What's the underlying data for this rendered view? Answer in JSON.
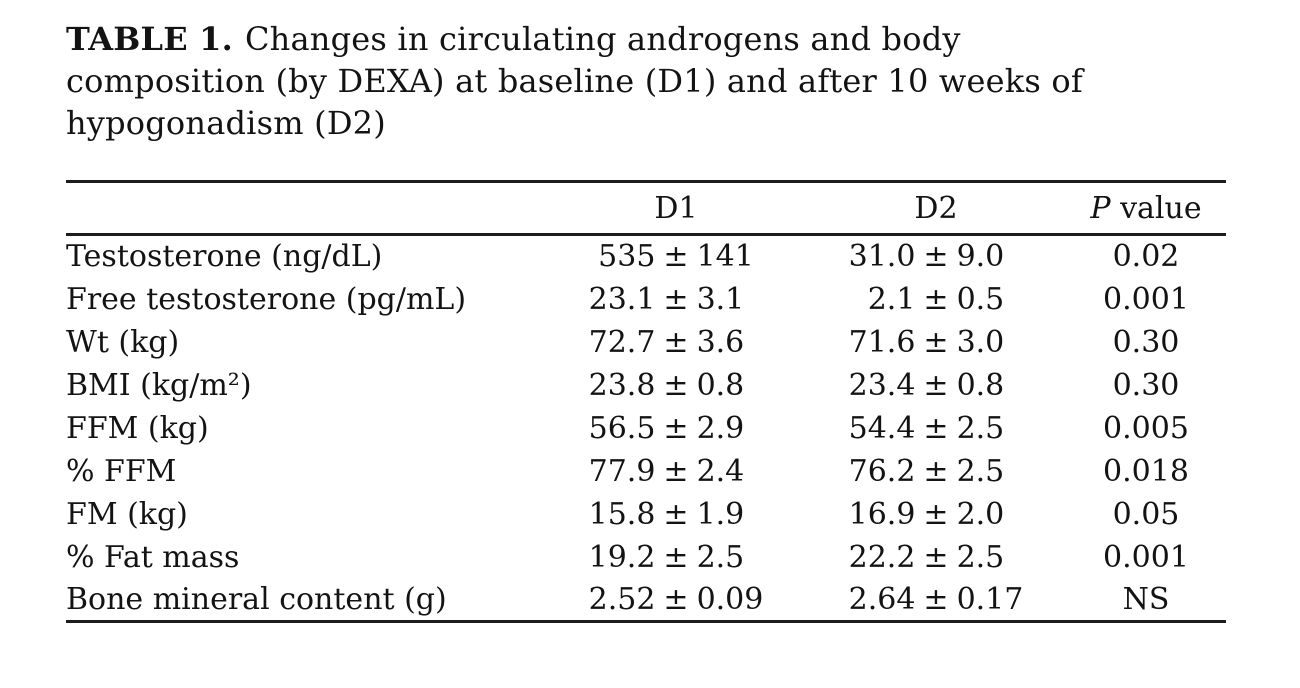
{
  "page": {
    "background": "#ffffff",
    "text_color": "#131313",
    "rule_color": "#1c1c1c"
  },
  "title": {
    "label": "TABLE 1.",
    "lines": [
      "Changes in circulating androgens and body",
      "composition (by DEXA) at baseline (D1) and after 10 weeks of",
      "hypogonadism (D2)"
    ]
  },
  "table": {
    "pm_symbol": "±",
    "columns": {
      "row_label": "",
      "d1": "D1",
      "d2": "D2",
      "p_italic": "P",
      "p_rest": " value"
    },
    "rows": [
      {
        "label": "Testosterone (ng/dL)",
        "d1_mean": "535",
        "d1_sd": "141",
        "d2_mean": "31.0",
        "d2_sd": "9.0",
        "p": "0.02"
      },
      {
        "label": "Free testosterone (pg/mL)",
        "d1_mean": "23.1",
        "d1_sd": "3.1",
        "d2_mean": "2.1",
        "d2_sd": "0.5",
        "p": "0.001"
      },
      {
        "label": "Wt (kg)",
        "d1_mean": "72.7",
        "d1_sd": "3.6",
        "d2_mean": "71.6",
        "d2_sd": "3.0",
        "p": "0.30"
      },
      {
        "label": "BMI (kg/m²)",
        "d1_mean": "23.8",
        "d1_sd": "0.8",
        "d2_mean": "23.4",
        "d2_sd": "0.8",
        "p": "0.30"
      },
      {
        "label": "FFM (kg)",
        "d1_mean": "56.5",
        "d1_sd": "2.9",
        "d2_mean": "54.4",
        "d2_sd": "2.5",
        "p": "0.005"
      },
      {
        "label": "% FFM",
        "d1_mean": "77.9",
        "d1_sd": "2.4",
        "d2_mean": "76.2",
        "d2_sd": "2.5",
        "p": "0.018"
      },
      {
        "label": "FM (kg)",
        "d1_mean": "15.8",
        "d1_sd": "1.9",
        "d2_mean": "16.9",
        "d2_sd": "2.0",
        "p": "0.05"
      },
      {
        "label": "% Fat mass",
        "d1_mean": "19.2",
        "d1_sd": "2.5",
        "d2_mean": "22.2",
        "d2_sd": "2.5",
        "p": "0.001"
      },
      {
        "label": "Bone mineral content (g)",
        "d1_mean": "2.52",
        "d1_sd": "0.09",
        "d2_mean": "2.64",
        "d2_sd": "0.17",
        "p": "NS"
      }
    ]
  }
}
